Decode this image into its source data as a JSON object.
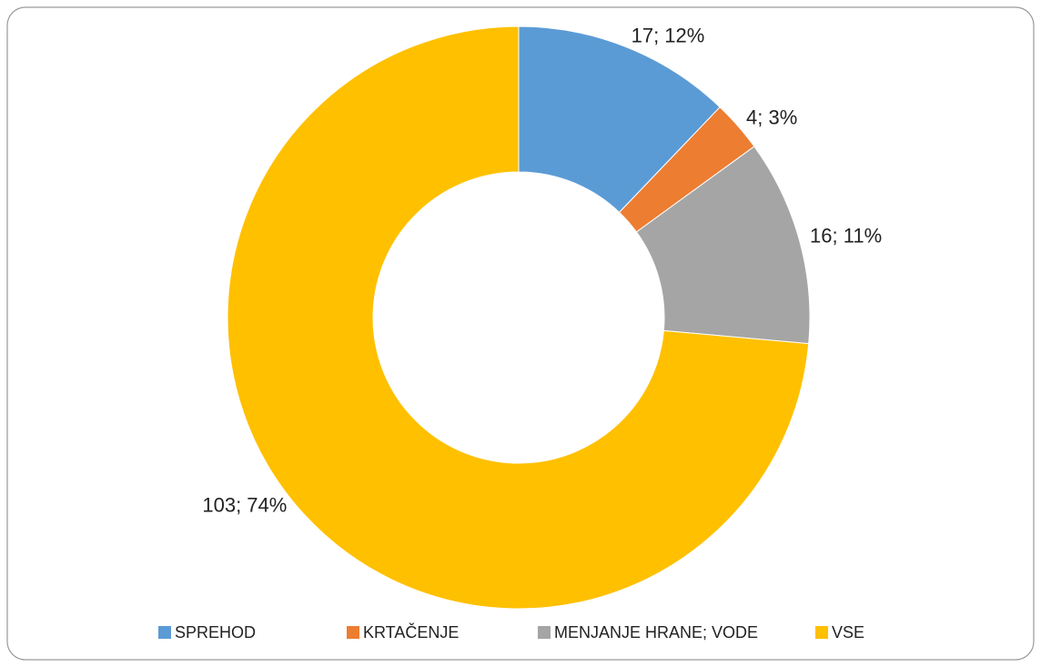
{
  "chart_data": {
    "type": "donut",
    "categories": [
      "SPREHOD",
      "KRTAČENJE",
      "MENJANJE HRANE; VODE",
      "VSE"
    ],
    "values": [
      17,
      4,
      16,
      103
    ],
    "value_labels": [
      "17; 12%",
      "4; 3%",
      "16; 11%",
      "103; 74%"
    ],
    "colors": [
      "#5b9bd5",
      "#ed7d31",
      "#a5a5a5",
      "#ffc000"
    ],
    "legend": "bottom"
  }
}
